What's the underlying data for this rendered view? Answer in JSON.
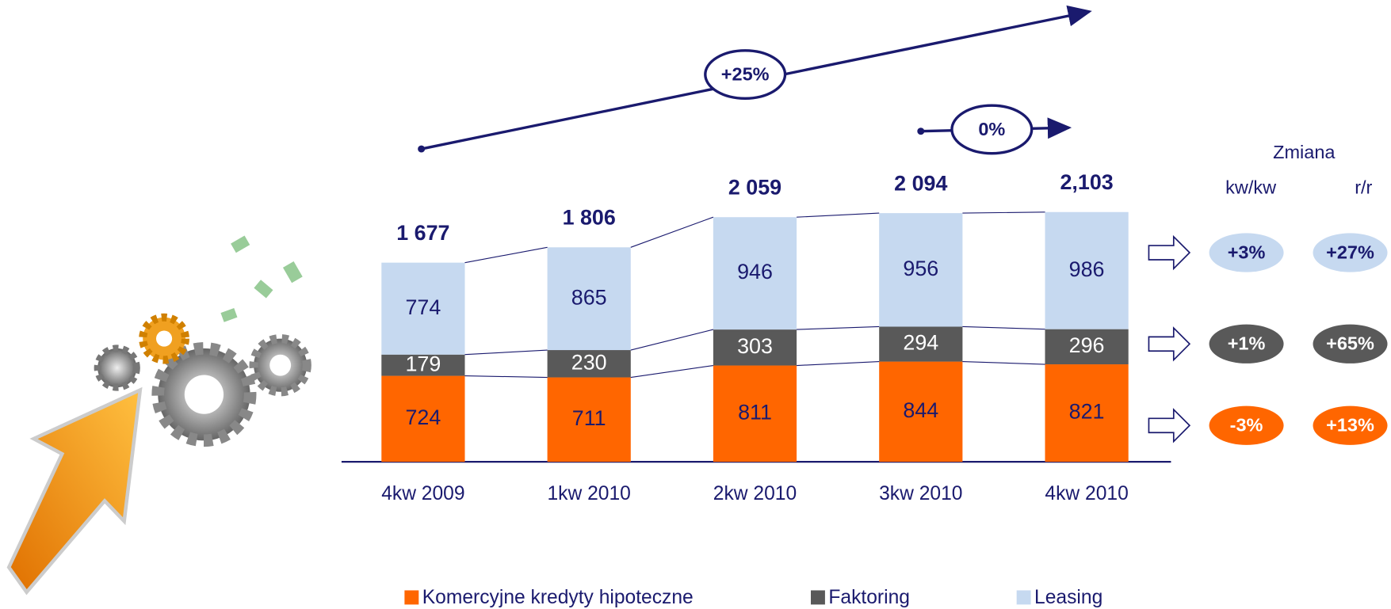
{
  "chart_data": {
    "type": "stacked-bar",
    "categories": [
      "4kw 2009",
      "1kw 2010",
      "2kw 2010",
      "3kw 2010",
      "4kw 2010"
    ],
    "series": [
      {
        "name": "Komercyjne kredyty hipoteczne",
        "color": "#ff6600",
        "label_color": "#1a1a6e",
        "values": [
          724,
          711,
          811,
          844,
          821
        ],
        "change_qoq": {
          "values": [
            -3
          ],
          "value_labels": [
            "-3%"
          ]
        },
        "change_yoy": {
          "values": [
            13
          ],
          "value_labels": [
            "+13%"
          ]
        }
      },
      {
        "name": "Faktoring",
        "color": "#595959",
        "label_color": "#ffffff",
        "values": [
          179,
          230,
          303,
          294,
          296
        ],
        "change_qoq": {
          "values": [
            1
          ],
          "value_labels": [
            "+1%"
          ]
        },
        "change_yoy": {
          "values": [
            65
          ],
          "value_labels": [
            "+65%"
          ]
        }
      },
      {
        "name": "Leasing",
        "color": "#c6d9f0",
        "label_color": "#1a1a6e",
        "values": [
          774,
          865,
          946,
          956,
          986
        ],
        "change_qoq": {
          "values": [
            3
          ],
          "value_labels": [
            "+3%"
          ]
        },
        "change_yoy": {
          "values": [
            27
          ],
          "value_labels": [
            "+27%"
          ]
        }
      }
    ],
    "totals": {
      "values": [
        1677,
        1806,
        2059,
        2094,
        2103
      ],
      "value_labels": [
        "1 677",
        "1 806",
        "2 059",
        "2 094",
        "2,103"
      ]
    },
    "change_header": {
      "title": "Zmiana",
      "columns": [
        "kw/kw",
        "r/r"
      ]
    },
    "annotations": [
      {
        "value": 25,
        "label": "+25%"
      },
      {
        "value": 0,
        "label": "0%"
      }
    ]
  }
}
